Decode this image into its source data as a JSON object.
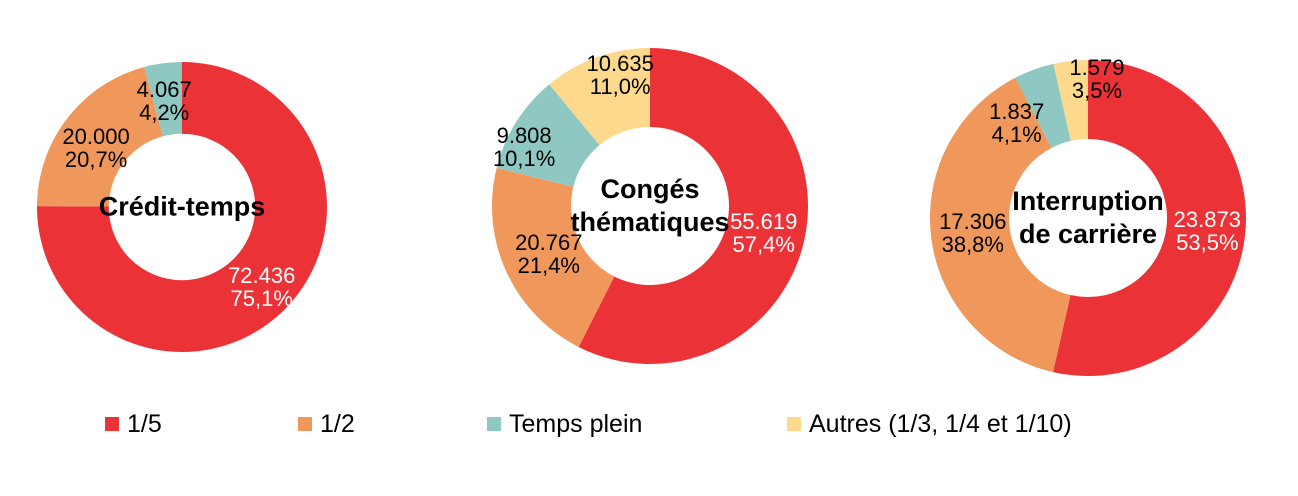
{
  "palette": {
    "red": "#EA3237",
    "orange": "#F0985C",
    "teal": "#8FC7C3",
    "yellow": "#FDD98D"
  },
  "legend": {
    "position": "bottom",
    "items": [
      {
        "label": "1/5",
        "color": "red"
      },
      {
        "label": "1/2",
        "color": "orange"
      },
      {
        "label": "Temps plein",
        "color": "teal"
      },
      {
        "label": "Autres (1/3, 1/4 et 1/10)",
        "color": "yellow"
      }
    ]
  },
  "chart_data": [
    {
      "type": "pie",
      "subtype": "donut",
      "title": "Crédit-temps",
      "title_lines": [
        "Crédit-temps"
      ],
      "start_angle_deg": 0,
      "direction": "clockwise",
      "hole_frac": 0.505,
      "slices": [
        {
          "legend": "1/5",
          "color": "red",
          "value": 72436,
          "value_label": "72.436",
          "pct": 75.1,
          "pct_label": "75,1%",
          "label_color": "#FFFFFF",
          "label_r_frac": 0.78,
          "label_angle_offset_deg": 0
        },
        {
          "legend": "1/2",
          "color": "orange",
          "value": 20000,
          "value_label": "20.000",
          "pct": 20.7,
          "pct_label": "20,7%",
          "label_color": "#000000",
          "label_r_frac": 0.72,
          "label_angle_offset_deg": -3
        },
        {
          "legend": "Temps plein",
          "color": "teal",
          "value": 4067,
          "value_label": "4.067",
          "pct": 4.2,
          "pct_label": "4,2%",
          "label_color": "#000000",
          "label_r_frac": 0.74,
          "label_angle_offset_deg": -2
        }
      ]
    },
    {
      "type": "pie",
      "subtype": "donut",
      "title": "Congés thématiques",
      "title_lines": [
        "Congés",
        "thématiques"
      ],
      "start_angle_deg": 0,
      "direction": "clockwise",
      "hole_frac": 0.5,
      "slices": [
        {
          "legend": "1/5",
          "color": "red",
          "value": 55619,
          "value_label": "55.619",
          "pct": 57.4,
          "pct_label": "57,4%",
          "label_color": "#FFFFFF",
          "label_r_frac": 0.74,
          "label_angle_offset_deg": 0
        },
        {
          "legend": "1/2",
          "color": "orange",
          "value": 20767,
          "value_label": "20.767",
          "pct": 21.4,
          "pct_label": "21,4%",
          "label_color": "#000000",
          "label_r_frac": 0.71,
          "label_angle_offset_deg": -1
        },
        {
          "legend": "Temps plein",
          "color": "teal",
          "value": 9808,
          "value_label": "9.808",
          "pct": 10.1,
          "pct_label": "10,1%",
          "label_color": "#000000",
          "label_r_frac": 0.88,
          "label_angle_offset_deg": -7
        },
        {
          "legend": "Autres (1/3, 1/4 et 1/10)",
          "color": "yellow",
          "value": 10635,
          "value_label": "10.635",
          "pct": 11.0,
          "pct_label": "11,0%",
          "label_color": "#000000",
          "label_r_frac": 0.85,
          "label_angle_offset_deg": 7
        }
      ]
    },
    {
      "type": "pie",
      "subtype": "donut",
      "title": "Interruption de carrière",
      "title_lines": [
        "Interruption",
        "de carrière"
      ],
      "start_angle_deg": 0,
      "direction": "clockwise",
      "hole_frac": 0.5,
      "slices": [
        {
          "legend": "1/5",
          "color": "red",
          "value": 23873,
          "value_label": "23.873",
          "pct": 53.5,
          "pct_label": "53,5%",
          "label_color": "#FFFFFF",
          "label_r_frac": 0.76,
          "label_angle_offset_deg": 0
        },
        {
          "legend": "1/2",
          "color": "orange",
          "value": 17306,
          "value_label": "17.306",
          "pct": 38.8,
          "pct_label": "38,8%",
          "label_color": "#000000",
          "label_r_frac": 0.735,
          "label_angle_offset_deg": 0
        },
        {
          "legend": "Temps plein",
          "color": "teal",
          "value": 1837,
          "value_label": "1.837",
          "pct": 4.1,
          "pct_label": "4,1%",
          "label_color": "#000000",
          "label_r_frac": 0.75,
          "label_angle_offset_deg": -17
        },
        {
          "legend": "Autres (1/3, 1/4 et 1/10)",
          "color": "yellow",
          "value": 1579,
          "value_label": "1.579",
          "pct": 3.5,
          "pct_label": "3,5%",
          "label_color": "#000000",
          "label_r_frac": 0.88,
          "label_angle_offset_deg": 10
        }
      ]
    }
  ]
}
